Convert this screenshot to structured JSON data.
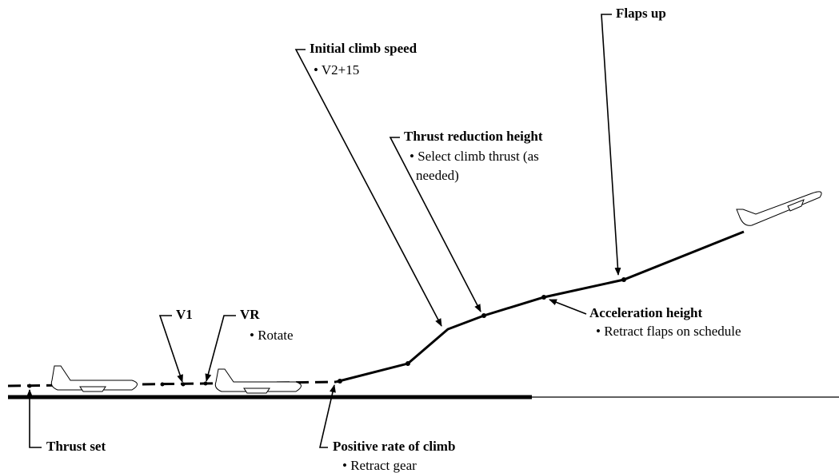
{
  "labels": {
    "thrust_set": {
      "title": "Thrust set"
    },
    "v1": {
      "title": "V1"
    },
    "vr": {
      "title": "VR",
      "note": "• Rotate"
    },
    "positive_rate": {
      "title": "Positive rate of climb",
      "note": "• Retract gear"
    },
    "initial_climb": {
      "title": "Initial climb speed",
      "note": "• V2+15"
    },
    "thrust_reduction": {
      "title": "Thrust reduction height",
      "note_lines": [
        "• Select climb thrust (as",
        "needed)"
      ]
    },
    "acceleration": {
      "title": "Acceleration height",
      "note": "• Retract flaps on schedule"
    },
    "flaps_up": {
      "title": "Flaps up"
    }
  }
}
